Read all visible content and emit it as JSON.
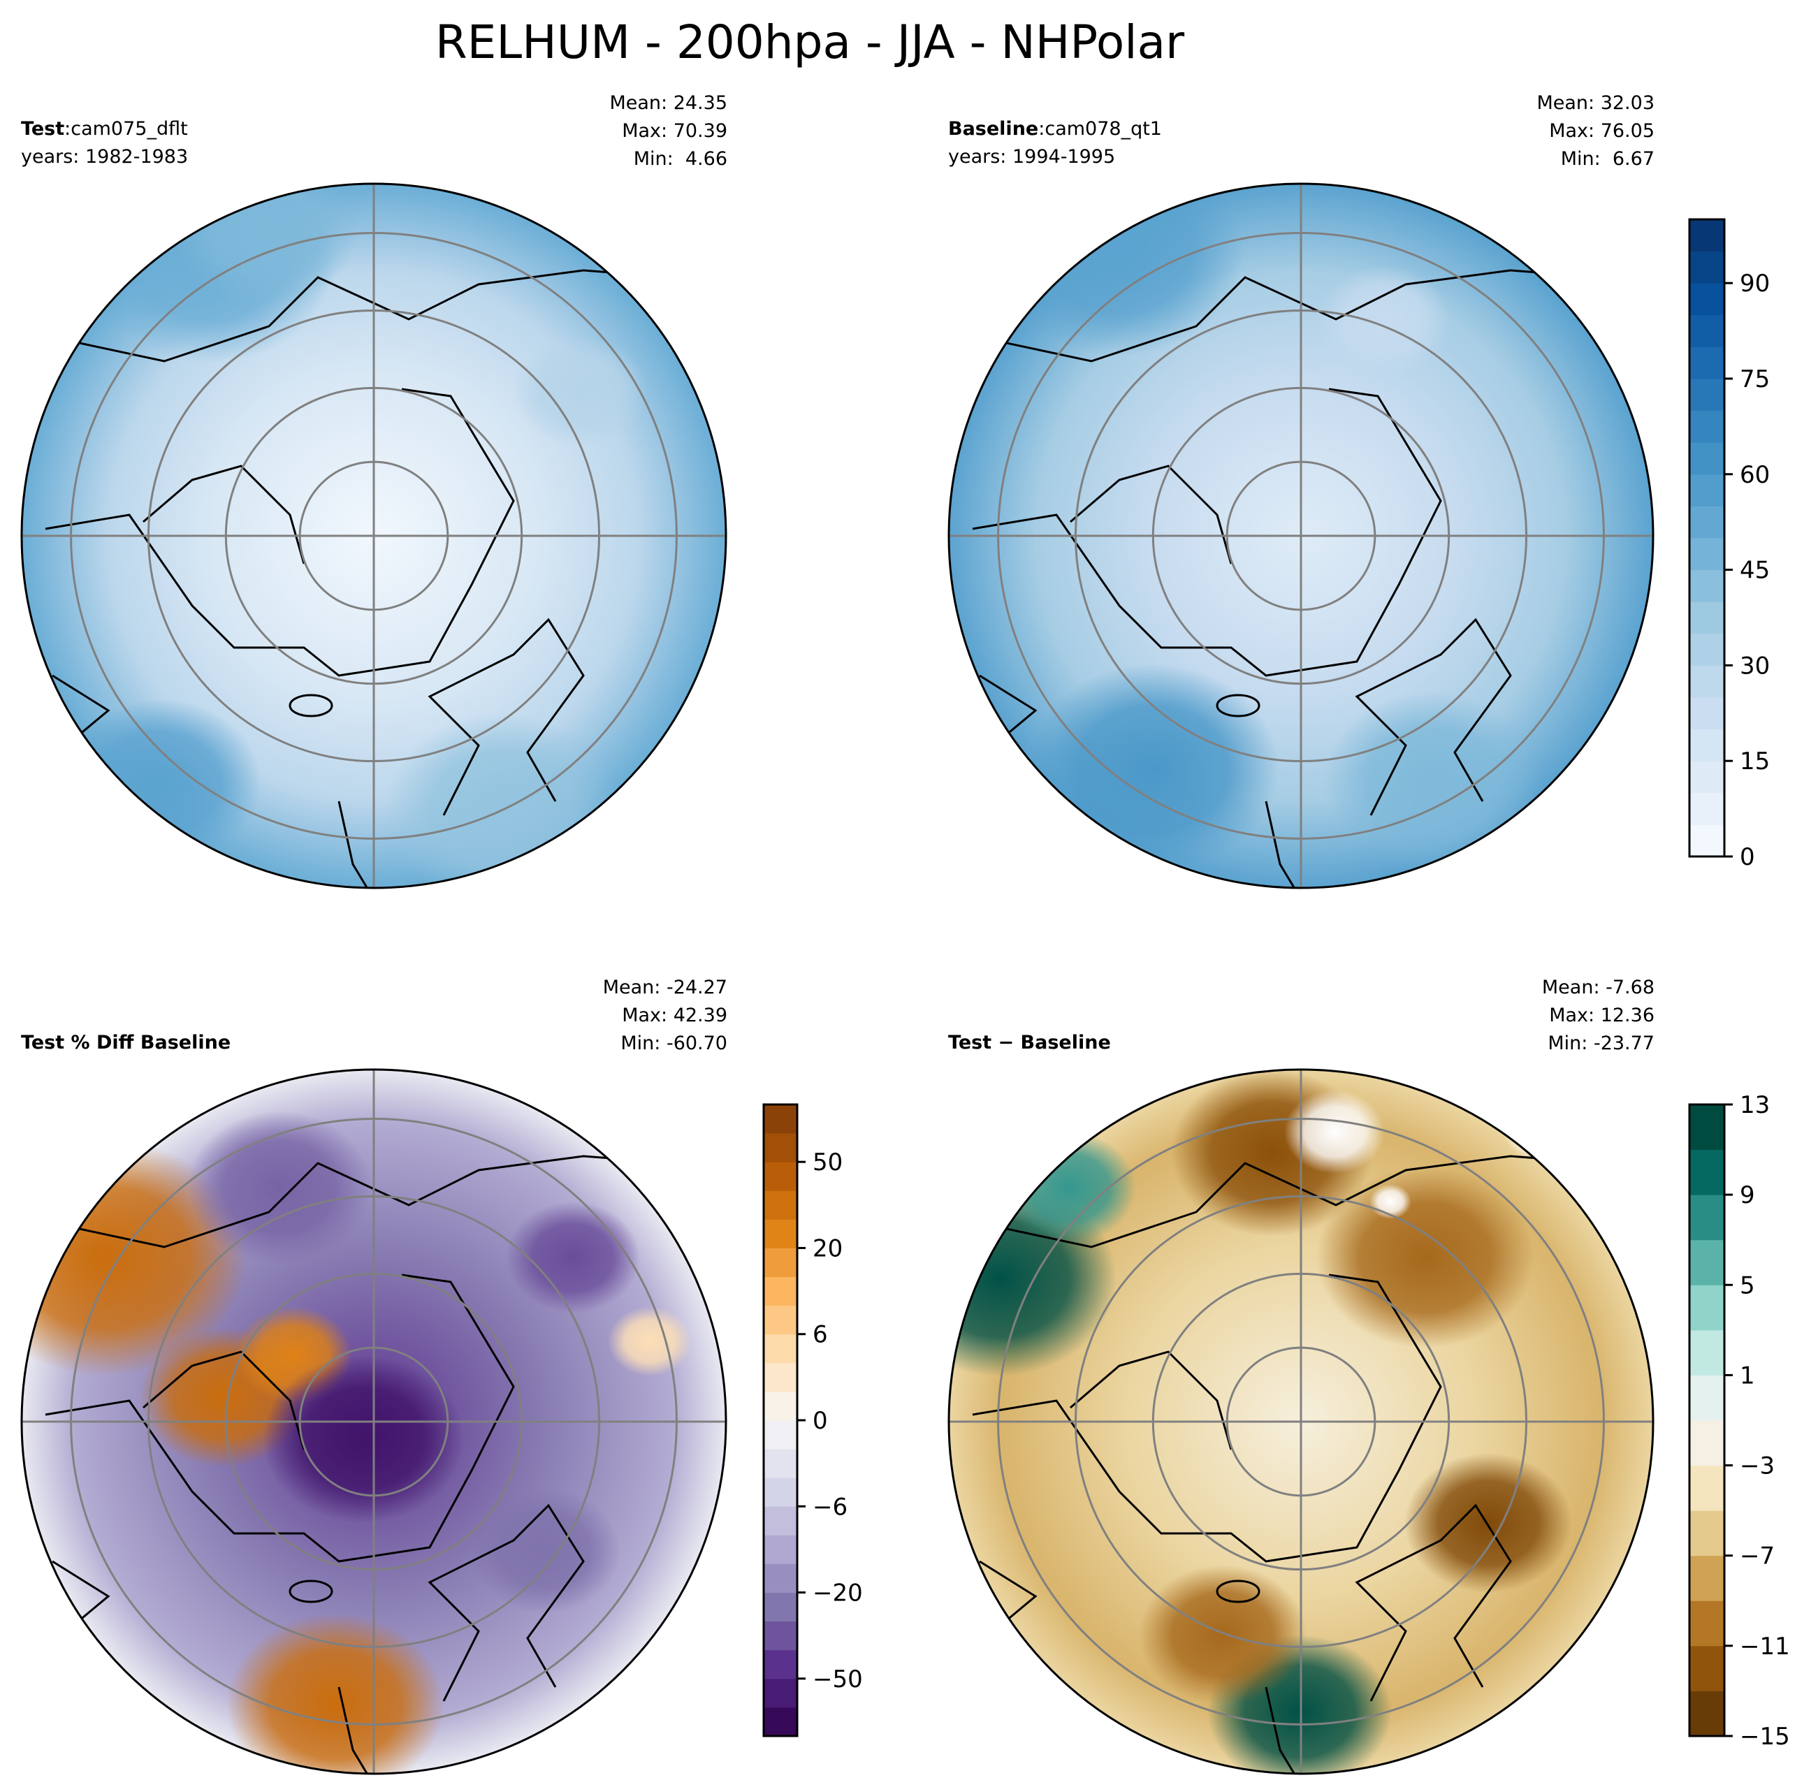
{
  "title": "RELHUM - 200hpa - JJA - NHPolar",
  "chart_data": [
    {
      "type": "heatmap",
      "projection": "north-polar-stereographic",
      "panel": "test",
      "label_bold": "Test",
      "label_sep": ":",
      "label_name": "cam075_dflt",
      "years": "years: 1982-1983",
      "stats": {
        "mean": "Mean: 24.35",
        "max": "Max: 70.39",
        "min": "Min:  4.66"
      },
      "colorbar": "shared-with-baseline"
    },
    {
      "type": "heatmap",
      "projection": "north-polar-stereographic",
      "panel": "baseline",
      "label_bold": "Baseline",
      "label_sep": ":",
      "label_name": "cam078_qt1",
      "years": "years: 1994-1995",
      "stats": {
        "mean": "Mean: 32.03",
        "max": "Max: 76.05",
        "min": "Min:  6.67"
      },
      "colorbar": {
        "colormap": "Blues",
        "range": [
          0,
          100
        ],
        "n_levels": 20,
        "ticks": [
          "0",
          "15",
          "30",
          "45",
          "60",
          "75",
          "90"
        ],
        "tick_values": [
          0,
          15,
          30,
          45,
          60,
          75,
          90
        ]
      }
    },
    {
      "type": "heatmap",
      "projection": "north-polar-stereographic",
      "panel": "percent-diff",
      "label_bold": "Test % Diff Baseline",
      "stats": {
        "mean": "Mean: -24.27",
        "max": "Max: 42.39",
        "min": "Min: -60.70"
      },
      "colorbar": {
        "colormap": "PuOr_r",
        "n_levels": 22,
        "ticks": [
          "50",
          "20",
          "6",
          "0",
          "−6",
          "−20",
          "−50"
        ]
      }
    },
    {
      "type": "heatmap",
      "projection": "north-polar-stereographic",
      "panel": "difference",
      "label_bold": "Test − Baseline",
      "stats": {
        "mean": "Mean: -7.68",
        "max": "Max: 12.36",
        "min": "Min: -23.77"
      },
      "colorbar": {
        "colormap": "BrBG",
        "range": [
          -15,
          13
        ],
        "n_levels": 14,
        "ticks": [
          "13",
          "9",
          "5",
          "1",
          "−3",
          "−7",
          "−11",
          "−15"
        ],
        "tick_values": [
          13,
          9,
          5,
          1,
          -3,
          -7,
          -11,
          -15
        ]
      }
    }
  ],
  "colors": {
    "grid": "#808080",
    "blues": [
      "#f7fbff",
      "#deebf7",
      "#c6dbef",
      "#9ecae1",
      "#6baed6",
      "#4292c6",
      "#2171b5",
      "#08519c",
      "#08306b"
    ],
    "puor": [
      "#2d004b",
      "#542788",
      "#8073ac",
      "#b2abd2",
      "#d8daeb",
      "#f7f7f7",
      "#fee0b6",
      "#fdb863",
      "#e08214",
      "#b35806",
      "#7f3b08"
    ],
    "brbg": [
      "#543005",
      "#8c510a",
      "#bf812d",
      "#dfc27d",
      "#f6e8c3",
      "#f5f5f5",
      "#c7eae5",
      "#80cdc1",
      "#35978f",
      "#01665e",
      "#003c30"
    ]
  }
}
